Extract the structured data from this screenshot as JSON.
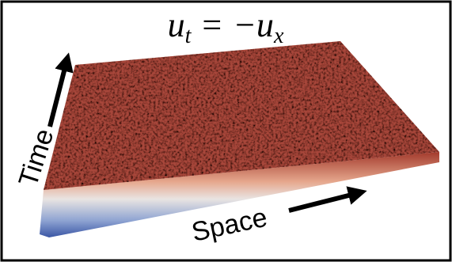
{
  "equation": {
    "left": "u",
    "left_subscript": "t",
    "operator": "=",
    "right": "−u",
    "right_subscript": "x"
  },
  "labels": {
    "time": "Time",
    "space": "Space"
  }
}
